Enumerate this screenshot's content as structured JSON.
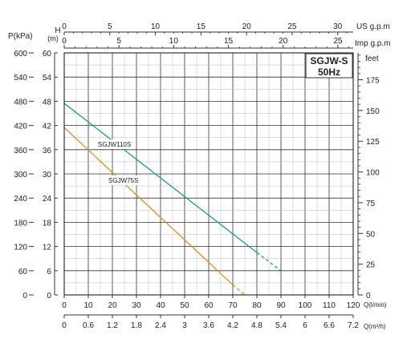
{
  "chart_data": {
    "type": "line",
    "title": "SGJW-S",
    "subtitle": "50Hz",
    "x": [
      0,
      90
    ],
    "series": [
      {
        "name": "SGJW110S",
        "color": "#1a9a8c",
        "points": [
          [
            0,
            47.5
          ],
          [
            80,
            10.5
          ]
        ],
        "dashed_points": [
          [
            80,
            10.5
          ],
          [
            90,
            6.0
          ]
        ]
      },
      {
        "name": "SGJW75S",
        "color": "#d9902a",
        "points": [
          [
            0,
            41.5
          ],
          [
            70,
            2.5
          ]
        ],
        "dashed_points": [
          [
            70,
            2.5
          ],
          [
            75,
            0
          ]
        ]
      }
    ],
    "axes": {
      "bottom_main": {
        "label": "Q(l/min)",
        "range": [
          0,
          120
        ],
        "ticks": [
          "0",
          "10",
          "20",
          "30",
          "40",
          "50",
          "60",
          "70",
          "80",
          "90",
          "100",
          "110",
          "120"
        ]
      },
      "bottom_second": {
        "label": "Q(m³/h)",
        "range": [
          0,
          7.2
        ],
        "ticks": [
          "0",
          "0.6",
          "1.2",
          "1.8",
          "2.4",
          "3",
          "3.6",
          "4.2",
          "4.8",
          "5.4",
          "6",
          "6.6",
          "7.2"
        ]
      },
      "top_us": {
        "label": "US g.p.m",
        "range": [
          0,
          31.7
        ],
        "ticks": [
          "0",
          "5",
          "10",
          "15",
          "20",
          "25",
          "30"
        ]
      },
      "top_imp": {
        "label": "Imp g.p.m",
        "range": [
          0,
          26.4
        ],
        "ticks": [
          "0",
          "5",
          "10",
          "15",
          "20",
          "25"
        ]
      },
      "left_head": {
        "label": "H",
        "unit": "(m)",
        "range": [
          0,
          60
        ],
        "ticks": [
          "0",
          "6",
          "12",
          "18",
          "24",
          "30",
          "36",
          "42",
          "48",
          "54",
          "60"
        ]
      },
      "left_pressure": {
        "label": "P(kPa)",
        "range": [
          0,
          600
        ],
        "ticks": [
          "0",
          "60",
          "120",
          "180",
          "240",
          "300",
          "360",
          "420",
          "480",
          "540",
          "600"
        ]
      },
      "right_feet": {
        "label": "feet",
        "range": [
          0,
          196.85
        ],
        "ticks": [
          "0",
          "25",
          "50",
          "75",
          "100",
          "125",
          "150",
          "175"
        ]
      }
    },
    "ylim": [
      0,
      60
    ],
    "xlim": [
      0,
      120
    ],
    "grid": true
  }
}
